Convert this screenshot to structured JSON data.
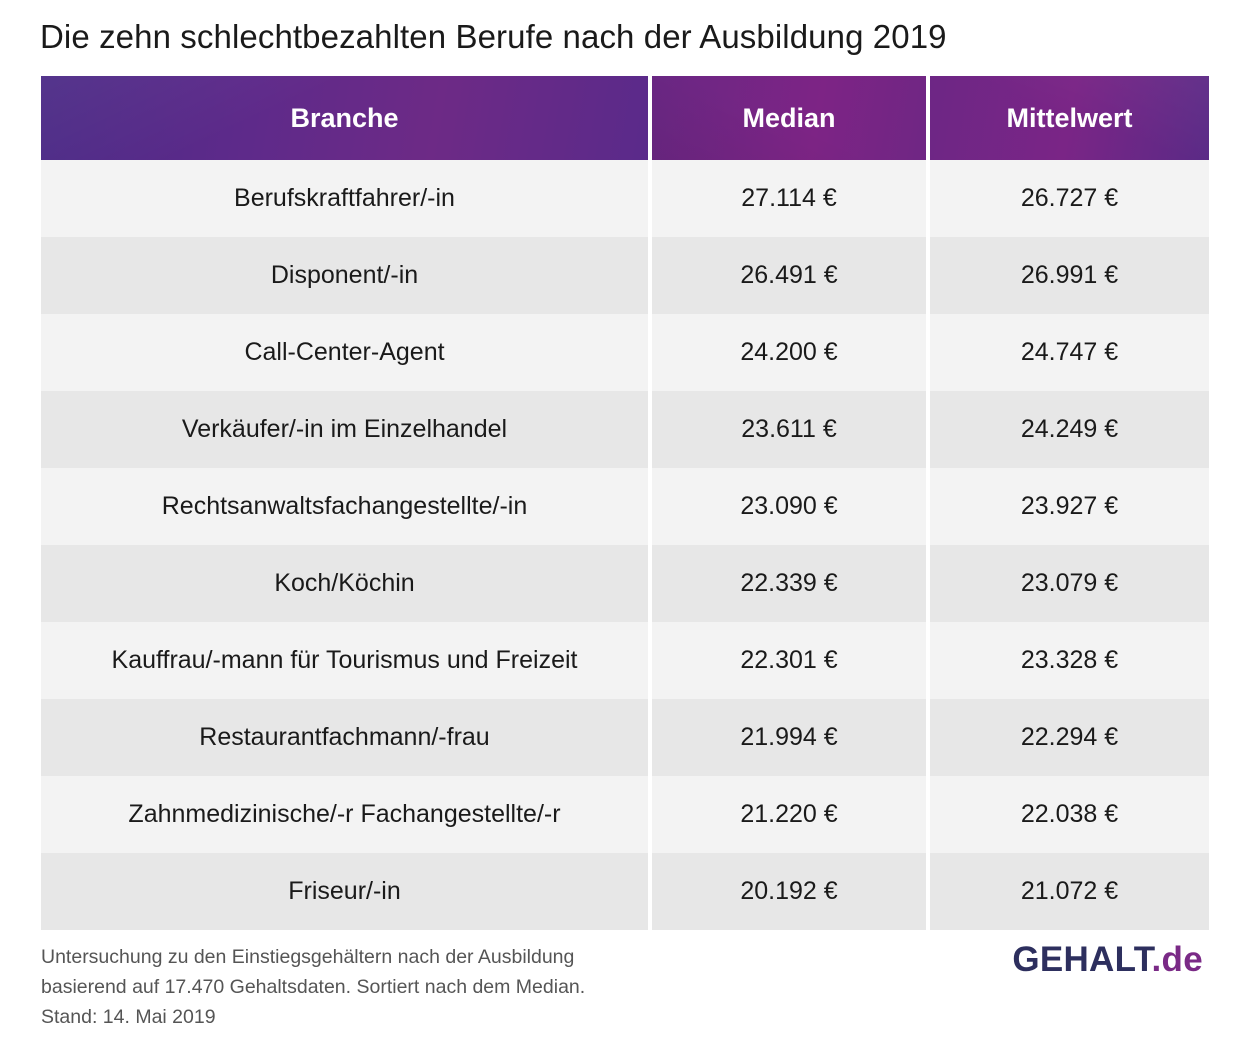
{
  "title": "Die zehn schlechtbezahlten Berufe nach der Ausbildung 2019",
  "chart_data": {
    "type": "table",
    "title": "Die zehn schlechtbezahlten Berufe nach der Ausbildung 2019",
    "columns": [
      "Branche",
      "Median",
      "Mittelwert"
    ],
    "rows": [
      [
        "Berufskraftfahrer/-in",
        "27.114 €",
        "26.727 €"
      ],
      [
        "Disponent/-in",
        "26.491 €",
        "26.991 €"
      ],
      [
        "Call-Center-Agent",
        "24.200 €",
        "24.747 €"
      ],
      [
        "Verkäufer/-in im Einzelhandel",
        "23.611 €",
        "24.249 €"
      ],
      [
        "Rechtsanwaltsfachangestellte/-in",
        "23.090 €",
        "23.927 €"
      ],
      [
        "Koch/Köchin",
        "22.339 €",
        "23.079 €"
      ],
      [
        "Kauffrau/-mann für Tourismus und Freizeit",
        "22.301 €",
        "23.328 €"
      ],
      [
        "Restaurantfachmann/-frau",
        "21.994 €",
        "22.294 €"
      ],
      [
        "Zahnmedizinische/-r Fachangestellte/-r",
        "21.220 €",
        "22.038 €"
      ],
      [
        "Friseur/-in",
        "20.192 €",
        "21.072 €"
      ]
    ],
    "header_colors": [
      "#4b2a86",
      "#7a2586"
    ],
    "row_colors": [
      "#f3f3f3",
      "#e7e7e7"
    ]
  },
  "footnote": {
    "line1": "Untersuchung zu den Einstiegsgehältern nach der Ausbildung",
    "line2": "basierend auf 17.470 Gehaltsdaten. Sortiert nach dem Median.",
    "line3": "Stand: 14. Mai 2019"
  },
  "logo": {
    "main": "GEHALT",
    "dot": ".",
    "tld": "de"
  }
}
